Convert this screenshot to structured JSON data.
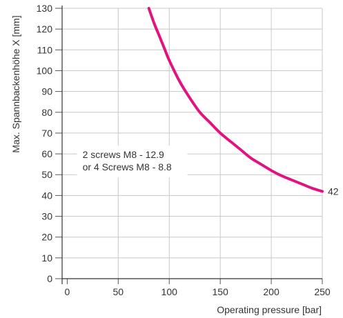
{
  "chart_data": {
    "type": "line",
    "xlabel": "Operating pressure [bar]",
    "ylabel": "Max. Spannbackenhöhe X [mm]",
    "xlim": [
      -5,
      250
    ],
    "ylim": [
      0,
      130
    ],
    "x_ticks": [
      0,
      50,
      100,
      150,
      200,
      250
    ],
    "y_ticks": [
      0,
      10,
      20,
      30,
      40,
      50,
      60,
      70,
      80,
      90,
      100,
      110,
      120,
      130
    ],
    "grid": true,
    "series": [
      {
        "color": "#e0137f",
        "x": [
          80,
          85,
          90,
          95,
          100,
          110,
          120,
          130,
          140,
          150,
          160,
          170,
          180,
          190,
          200,
          210,
          220,
          230,
          240,
          250
        ],
        "y": [
          130,
          123,
          117,
          111,
          105,
          95,
          87,
          80,
          75,
          70,
          66,
          62,
          58,
          55,
          52,
          49.5,
          47.5,
          45.5,
          43.5,
          42
        ]
      }
    ],
    "annotations": [
      {
        "text": "2 screws M8 - 12.9",
        "x": 15,
        "y": 58
      },
      {
        "text": "or 4 Screws M8 - 8.8",
        "x": 15,
        "y": 52
      },
      {
        "text": "42",
        "x": 250,
        "y": 42
      }
    ]
  }
}
